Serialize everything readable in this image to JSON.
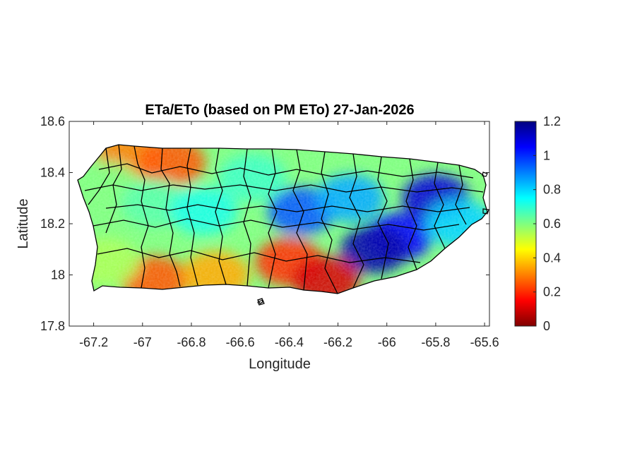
{
  "chart_data": {
    "type": "heatmap",
    "title": "ETa/ETo (based on PM ETo) 27-Jan-2026",
    "xlabel": "Longitude",
    "ylabel": "Latitude",
    "xlim": [
      -67.3,
      -65.58
    ],
    "ylim": [
      17.8,
      18.6
    ],
    "x_ticks": [
      "-67.2",
      "-67",
      "-66.8",
      "-66.6",
      "-66.4",
      "-66.2",
      "-66",
      "-65.8",
      "-65.6"
    ],
    "y_ticks": [
      "18.6",
      "18.4",
      "18.2",
      "18"
    ],
    "y_ticks_bottom": "17.8",
    "colorbar": {
      "min": 0,
      "max": 1.2,
      "colormap": "jet",
      "ticks": [
        "1.2",
        "1",
        "0.8",
        "0.6",
        "0.4",
        "0.2",
        "0"
      ]
    },
    "regions": [
      {
        "lon": -67.05,
        "lat": 18.47,
        "value": 0.3
      },
      {
        "lon": -66.88,
        "lat": 18.44,
        "value": 0.25
      },
      {
        "lon": -67.15,
        "lat": 18.35,
        "value": 0.6
      },
      {
        "lon": -66.95,
        "lat": 18.28,
        "value": 0.65
      },
      {
        "lon": -66.75,
        "lat": 18.25,
        "value": 0.72
      },
      {
        "lon": -66.55,
        "lat": 18.38,
        "value": 0.68
      },
      {
        "lon": -66.35,
        "lat": 18.25,
        "value": 0.95
      },
      {
        "lon": -66.15,
        "lat": 18.3,
        "value": 0.85
      },
      {
        "lon": -65.95,
        "lat": 18.15,
        "value": 1.05
      },
      {
        "lon": -65.8,
        "lat": 18.3,
        "value": 1.1
      },
      {
        "lon": -66.05,
        "lat": 18.1,
        "value": 1.15
      },
      {
        "lon": -66.4,
        "lat": 18.05,
        "value": 0.2
      },
      {
        "lon": -66.25,
        "lat": 17.98,
        "value": 0.1
      },
      {
        "lon": -66.95,
        "lat": 17.98,
        "value": 0.25
      },
      {
        "lon": -66.7,
        "lat": 18.0,
        "value": 0.35
      },
      {
        "lon": -67.15,
        "lat": 18.05,
        "value": 0.55
      },
      {
        "lon": -65.7,
        "lat": 18.2,
        "value": 0.8
      }
    ]
  }
}
